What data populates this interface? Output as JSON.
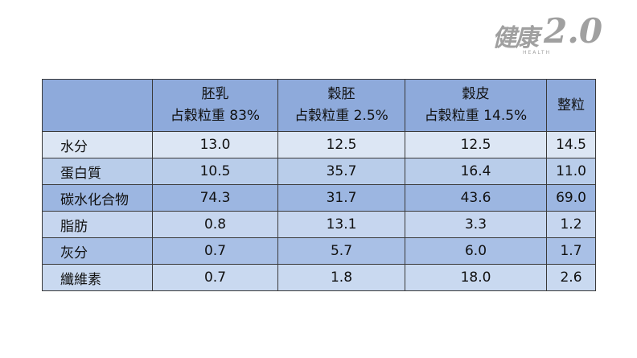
{
  "logo": {
    "name": "健康",
    "version": "2.0",
    "sub": "HEALTH"
  },
  "table": {
    "columns": [
      {
        "name": "胚乳",
        "note": "占穀粒重 83%"
      },
      {
        "name": "穀胚",
        "note": "占穀粒重 2.5%"
      },
      {
        "name": "穀皮",
        "note": "占穀粒重 14.5%"
      },
      {
        "name": "整粒"
      }
    ],
    "rows": [
      {
        "label": "水分",
        "values": [
          "13.0",
          "12.5",
          "12.5",
          "14.5"
        ]
      },
      {
        "label": "蛋白質",
        "values": [
          "10.5",
          "35.7",
          "16.4",
          "11.0"
        ]
      },
      {
        "label": "碳水化合物",
        "values": [
          "74.3",
          "31.7",
          "43.6",
          "69.0"
        ]
      },
      {
        "label": "脂肪",
        "values": [
          "0.8",
          "13.1",
          "3.3",
          "1.2"
        ]
      },
      {
        "label": "灰分",
        "values": [
          "0.7",
          "5.7",
          "6.0",
          "1.7"
        ]
      },
      {
        "label": "纖維素",
        "values": [
          "0.7",
          "1.8",
          "18.0",
          "2.6"
        ]
      }
    ]
  }
}
